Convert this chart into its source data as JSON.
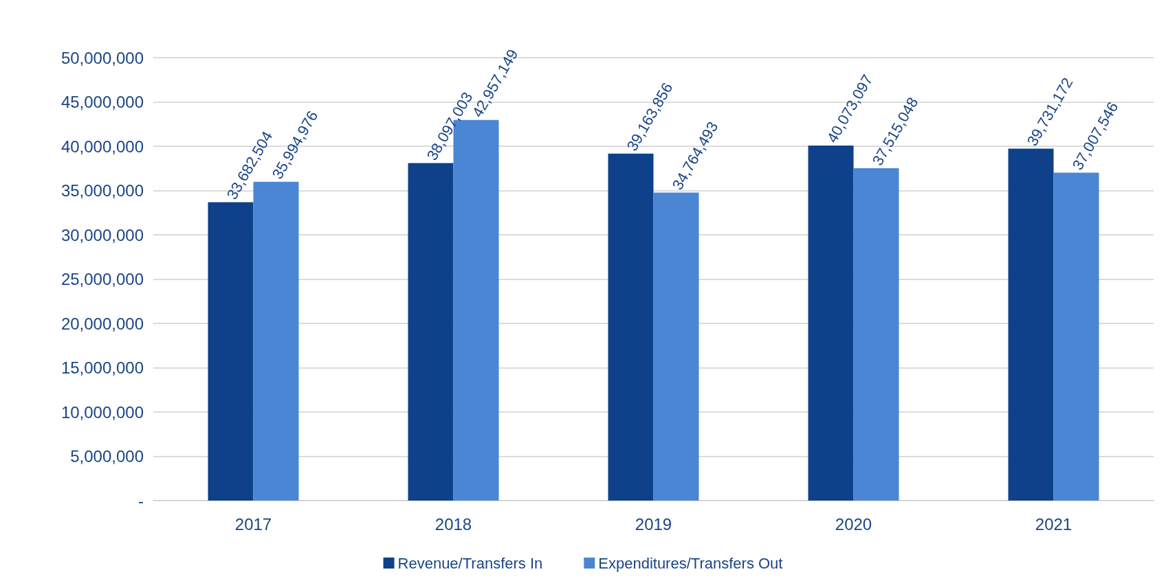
{
  "chart_data": {
    "type": "bar",
    "categories": [
      "2017",
      "2018",
      "2019",
      "2020",
      "2021"
    ],
    "series": [
      {
        "name": "Revenue/Transfers In",
        "color": "#0e4189",
        "values": [
          33682504,
          38097003,
          39163856,
          40073097,
          39731172
        ],
        "value_labels": [
          "33,682,504",
          "38,097,003",
          "39,163,856",
          "40,073,097",
          "39,731,172"
        ]
      },
      {
        "name": "Expenditures/Transfers Out",
        "color": "#4a86d4",
        "values": [
          35994976,
          42957149,
          34764493,
          37515048,
          37007546
        ],
        "value_labels": [
          "35,994,976",
          "42,957,149",
          "34,764,493",
          "37,515,048",
          "37,007,546"
        ]
      }
    ],
    "ylim": [
      0,
      50000000
    ],
    "yticks": [
      {
        "value": 0,
        "label": "-"
      },
      {
        "value": 5000000,
        "label": "5,000,000"
      },
      {
        "value": 10000000,
        "label": "10,000,000"
      },
      {
        "value": 15000000,
        "label": "15,000,000"
      },
      {
        "value": 20000000,
        "label": "20,000,000"
      },
      {
        "value": 25000000,
        "label": "25,000,000"
      },
      {
        "value": 30000000,
        "label": "30,000,000"
      },
      {
        "value": 35000000,
        "label": "35,000,000"
      },
      {
        "value": 40000000,
        "label": "40,000,000"
      },
      {
        "value": 45000000,
        "label": "45,000,000"
      },
      {
        "value": 50000000,
        "label": "50,000,000"
      }
    ],
    "grid": "y",
    "legend": "bottom"
  }
}
